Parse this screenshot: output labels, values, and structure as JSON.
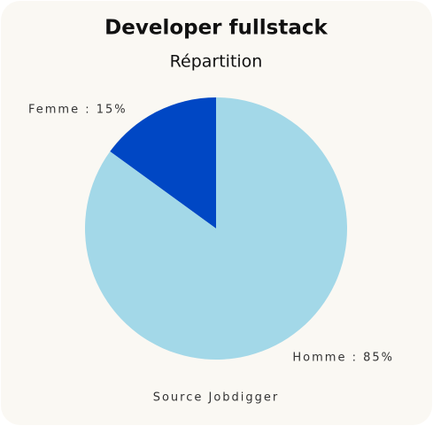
{
  "chart_data": {
    "type": "pie",
    "title": "Developer fullstack",
    "subtitle": "Répartition",
    "values": [
      15,
      85
    ],
    "value_labels": [
      "Femme : 15%",
      "Homme : 85%"
    ],
    "colors": [
      "#0047c4",
      "#a3d8e8"
    ],
    "source": "Source Jobdigger"
  }
}
